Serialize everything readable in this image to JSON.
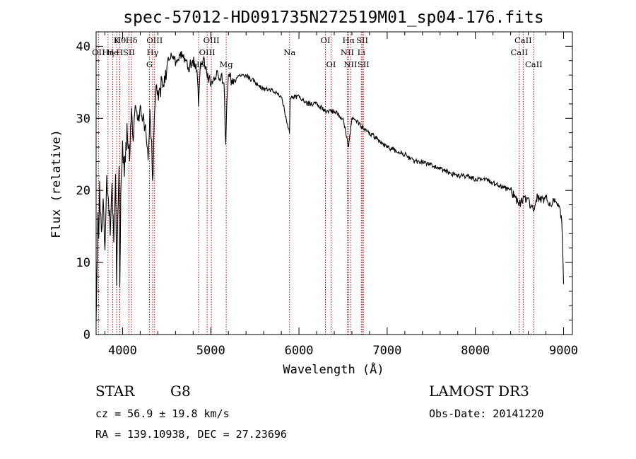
{
  "chart_data": {
    "type": "line",
    "title": "spec-57012-HD091735N272519M01_sp04-176.fits",
    "xlabel": "Wavelength (Å)",
    "ylabel": "Flux (relative)",
    "xlim": [
      3700,
      9100
    ],
    "ylim": [
      0,
      42
    ],
    "xticks": [
      4000,
      5000,
      6000,
      7000,
      8000,
      9000
    ],
    "yticks": [
      0,
      10,
      20,
      30,
      40
    ],
    "line_color": "#000000",
    "marker_color": "#cc0000",
    "series": [
      {
        "name": "spectrum",
        "x": [
          3700,
          3710,
          3720,
          3730,
          3740,
          3760,
          3780,
          3800,
          3820,
          3840,
          3860,
          3880,
          3900,
          3920,
          3933,
          3945,
          3960,
          3968,
          3980,
          4000,
          4020,
          4050,
          4080,
          4101,
          4120,
          4150,
          4180,
          4200,
          4230,
          4260,
          4290,
          4310,
          4330,
          4340,
          4360,
          4380,
          4400,
          4450,
          4500,
          4550,
          4600,
          4650,
          4700,
          4750,
          4800,
          4850,
          4861,
          4880,
          4920,
          4960,
          5000,
          5050,
          5100,
          5150,
          5170,
          5183,
          5200,
          5250,
          5300,
          5400,
          5500,
          5600,
          5700,
          5800,
          5893,
          5900,
          6000,
          6100,
          6200,
          6300,
          6400,
          6500,
          6563,
          6600,
          6700,
          6800,
          6900,
          7000,
          7100,
          7200,
          7300,
          7400,
          7500,
          7600,
          7700,
          7800,
          7900,
          8000,
          8100,
          8200,
          8300,
          8400,
          8450,
          8498,
          8542,
          8600,
          8662,
          8700,
          8750,
          8800,
          8850,
          8900,
          8950,
          8980,
          9000
        ],
        "y": [
          1,
          10,
          17,
          12,
          20,
          14,
          18,
          13,
          22,
          18,
          15,
          20,
          14,
          21,
          6,
          17,
          22,
          6,
          20,
          26,
          23,
          28,
          25,
          30,
          28,
          31,
          29,
          33,
          30,
          28,
          25,
          31,
          27,
          20,
          29,
          34,
          33,
          35,
          37,
          39,
          38,
          39,
          38,
          37,
          38,
          36,
          31,
          37,
          38,
          36,
          35,
          36,
          36,
          35,
          26,
          32,
          36,
          35,
          36,
          36,
          35,
          34,
          34,
          33,
          28,
          33,
          33,
          32,
          32,
          31,
          31,
          30,
          26,
          30,
          29,
          28,
          27,
          26,
          25.5,
          25,
          24,
          24,
          23.5,
          23,
          22.5,
          22,
          22,
          21.5,
          21.5,
          21,
          20.5,
          20,
          19,
          18,
          19,
          18.5,
          17.5,
          19,
          18.5,
          19,
          18,
          19,
          17.5,
          16,
          7
        ]
      }
    ],
    "spectral_lines": [
      {
        "wavelength": 3727,
        "label": "OII",
        "row": 2
      },
      {
        "wavelength": 3835,
        "label": "Hη",
        "row": 2
      },
      {
        "wavelength": 3889,
        "label": "He",
        "row": 2
      },
      {
        "wavelength": 3933,
        "label": "K",
        "row": 1
      },
      {
        "wavelength": 3968,
        "label": "H",
        "row": 2
      },
      {
        "wavelength": 3970,
        "label": "Hθ",
        "row": 1
      },
      {
        "wavelength": 4072,
        "label": "SII",
        "row": 2
      },
      {
        "wavelength": 4102,
        "label": "Hδ",
        "row": 1
      },
      {
        "wavelength": 4305,
        "label": "G",
        "row": 3
      },
      {
        "wavelength": 4341,
        "label": "Hγ",
        "row": 2
      },
      {
        "wavelength": 4363,
        "label": "OIII",
        "row": 1
      },
      {
        "wavelength": 4861,
        "label": "Hβ",
        "row": 3
      },
      {
        "wavelength": 4959,
        "label": "OIII",
        "row": 2
      },
      {
        "wavelength": 5007,
        "label": "OIII",
        "row": 1
      },
      {
        "wavelength": 5175,
        "label": "Mg",
        "row": 3
      },
      {
        "wavelength": 5893,
        "label": "Na",
        "row": 2
      },
      {
        "wavelength": 6300,
        "label": "OI",
        "row": 1
      },
      {
        "wavelength": 6364,
        "label": "OI",
        "row": 3
      },
      {
        "wavelength": 6548,
        "label": "NII",
        "row": 2
      },
      {
        "wavelength": 6563,
        "label": "Hα",
        "row": 1
      },
      {
        "wavelength": 6584,
        "label": "NII",
        "row": 3
      },
      {
        "wavelength": 6707,
        "label": "Li",
        "row": 2
      },
      {
        "wavelength": 6717,
        "label": "SII",
        "row": 1
      },
      {
        "wavelength": 6731,
        "label": "SII",
        "row": 3
      },
      {
        "wavelength": 8498,
        "label": "CaII",
        "row": 2
      },
      {
        "wavelength": 8542,
        "label": "CaII",
        "row": 1
      },
      {
        "wavelength": 8662,
        "label": "CaII",
        "row": 3
      }
    ]
  },
  "footer": {
    "object_class": "STAR",
    "subclass": "G8",
    "cz": "cz = 56.9 ± 19.8 km/s",
    "coords": "RA = 139.10938, DEC =  27.23696",
    "survey": "LAMOST DR3",
    "obs_date": "Obs-Date: 20141220"
  }
}
